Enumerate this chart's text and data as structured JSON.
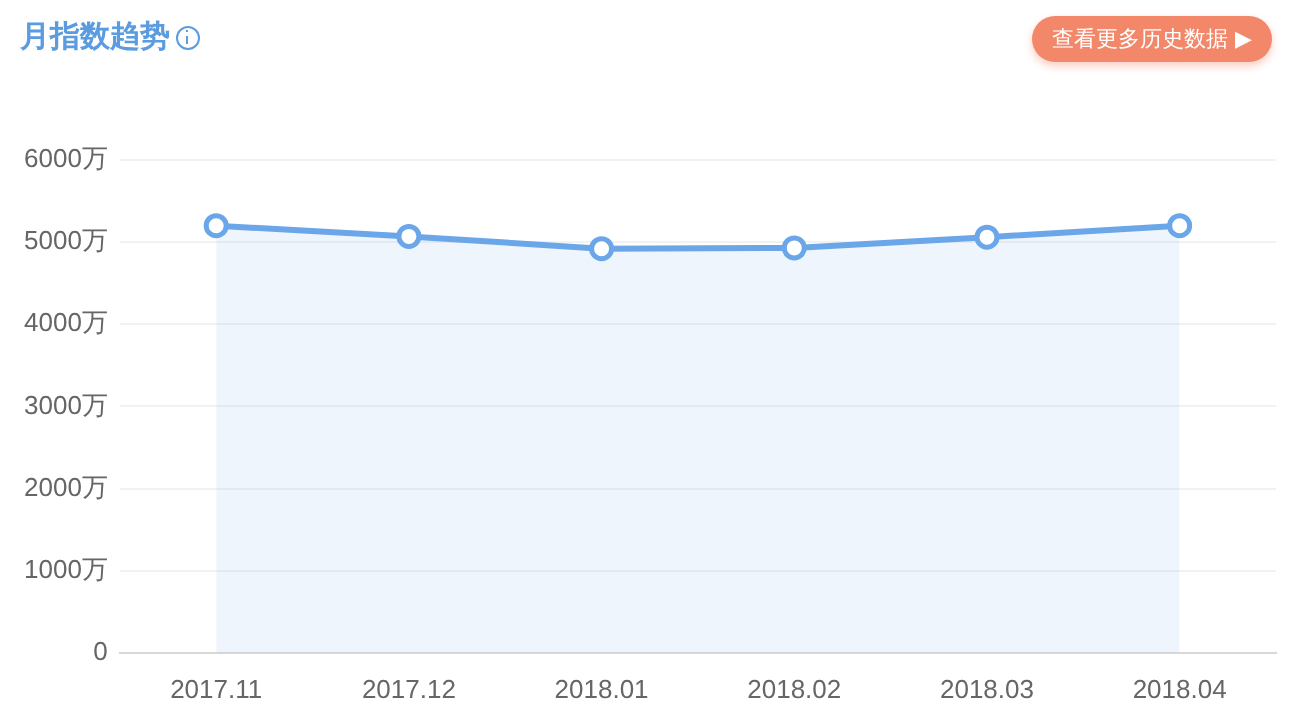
{
  "chart_data": {
    "type": "area",
    "title": "月指数趋势",
    "annotations": [
      "查看更多历史数据 ▶"
    ],
    "categories": [
      "2017.11",
      "2017.12",
      "2018.01",
      "2018.02",
      "2018.03",
      "2018.04"
    ],
    "series": [
      {
        "color": "#6aa6e8",
        "values": [
          5200,
          5070,
          4920,
          4930,
          5060,
          5200
        ]
      }
    ],
    "ylim": [
      0,
      6000
    ],
    "yticks": [
      0,
      {
        "value": 1000,
        "label": "1000万"
      },
      {
        "value": 2000,
        "label": "2000万"
      },
      {
        "value": 3000,
        "label": "3000万"
      },
      {
        "value": 4000,
        "label": "4000万"
      },
      {
        "value": 5000,
        "label": "5000万"
      },
      {
        "value": 6000,
        "label": "6000万"
      }
    ],
    "grid": "y",
    "legend": false,
    "marker": "circle",
    "line_style": "solid"
  }
}
